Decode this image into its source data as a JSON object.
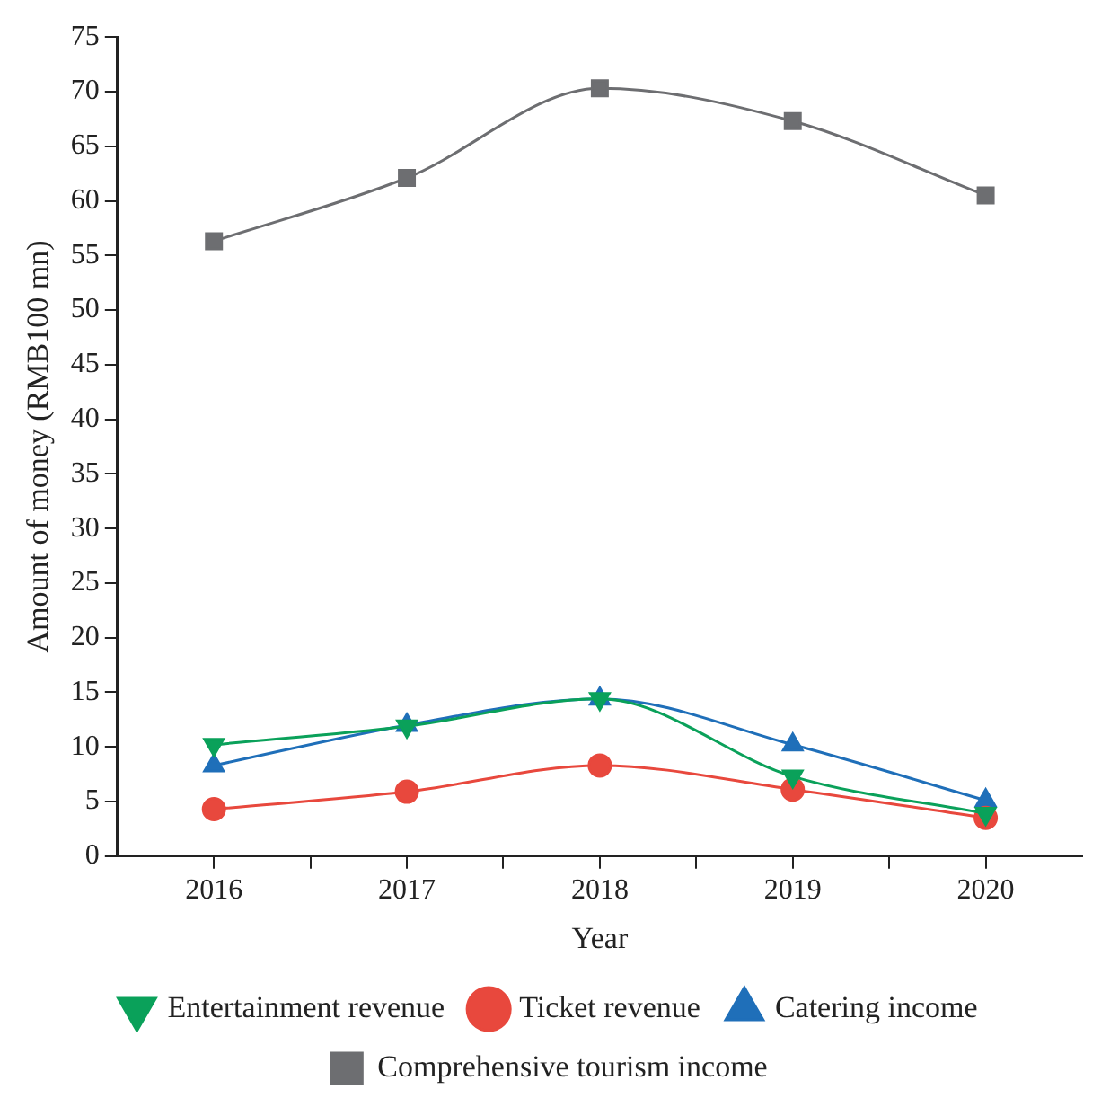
{
  "chart_data": {
    "type": "line",
    "xlabel": "Year",
    "ylabel": "Amount of money (RMB100 mn)",
    "x": [
      2016,
      2017,
      2018,
      2019,
      2020
    ],
    "xlim": [
      2015.5,
      2020.5
    ],
    "xticks": [
      2016,
      2017,
      2018,
      2019,
      2020,
      {
        "value": 2016.5,
        "label": null
      },
      {
        "value": 2017.5,
        "label": null
      },
      {
        "value": 2018.5,
        "label": null
      },
      {
        "value": 2019.5,
        "label": null
      }
    ],
    "ylim": [
      0,
      75
    ],
    "yticks": [
      0,
      5,
      10,
      15,
      20,
      25,
      30,
      35,
      40,
      45,
      50,
      55,
      60,
      65,
      70,
      75
    ],
    "grid": false,
    "legend": "bottom",
    "series": [
      {
        "name": "Comprehensive tourism income",
        "color": "#6d6e71",
        "marker": "square",
        "values": [
          56.3,
          62.1,
          70.3,
          67.3,
          60.5
        ]
      },
      {
        "name": "Catering income",
        "color": "#1f6fb9",
        "marker": "triangle",
        "values": [
          8.3,
          12.0,
          14.4,
          10.2,
          5.1
        ]
      },
      {
        "name": "Ticket revenue",
        "color": "#e8483d",
        "marker": "circle",
        "values": [
          4.3,
          5.9,
          8.3,
          6.1,
          3.5
        ]
      },
      {
        "name": "Entertainment revenue",
        "color": "#0aa15a",
        "marker": "triangle-down",
        "values": [
          10.2,
          11.9,
          14.4,
          7.3,
          3.9
        ]
      }
    ]
  }
}
